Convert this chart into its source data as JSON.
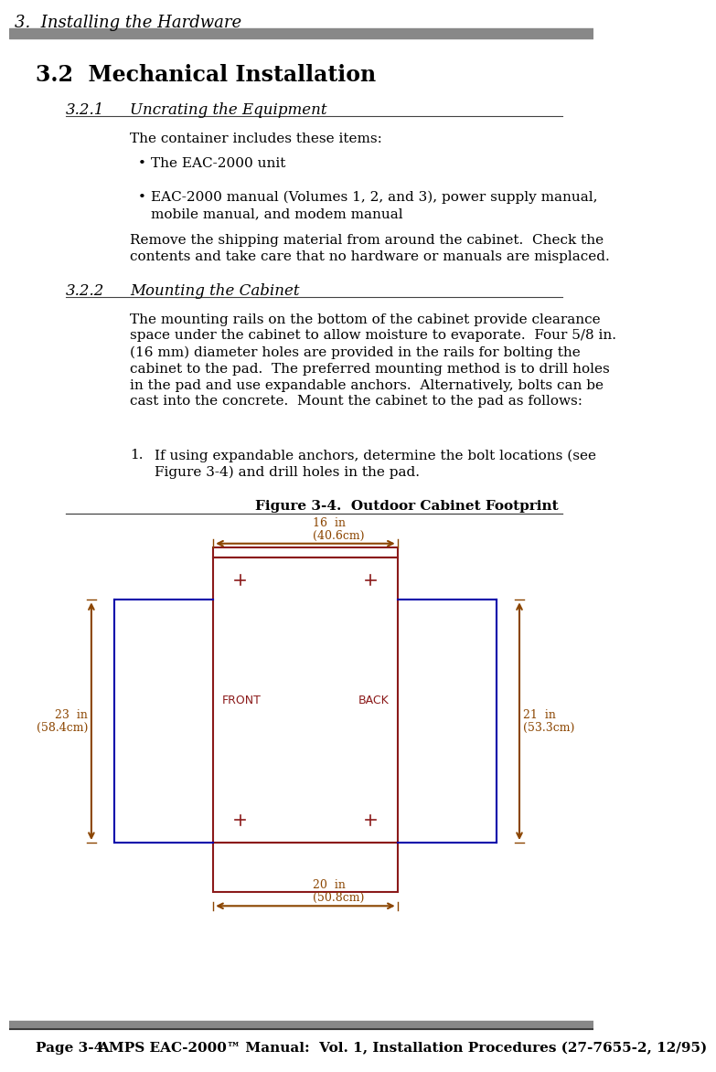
{
  "page_title": "3.  Installing the Hardware",
  "section_title": "3.2  Mechanical Installation",
  "subsection1_num": "3.2.1",
  "subsection1_title": "Uncrating the Equipment",
  "subsection1_text1": "The container includes these items:",
  "subsection1_bullets": [
    "The EAC-2000 unit",
    "EAC-2000 manual (Volumes 1, 2, and 3), power supply manual,\nmobile manual, and modem manual"
  ],
  "subsection1_text2": "Remove the shipping material from around the cabinet.  Check the\ncontents and take care that no hardware or manuals are misplaced.",
  "subsection2_num": "3.2.2",
  "subsection2_title": "Mounting the Cabinet",
  "subsection2_text1": "The mounting rails on the bottom of the cabinet provide clearance\nspace under the cabinet to allow moisture to evaporate.  Four 5/8 in.\n(16 mm) diameter holes are provided in the rails for bolting the\ncabinet to the pad.  The preferred mounting method is to drill holes\nin the pad and use expandable anchors.  Alternatively, bolts can be\ncast into the concrete.  Mount the cabinet to the pad as follows:",
  "step1_num": "1.",
  "step1_text": "If using expandable anchors, determine the bolt locations (see\nFigure 3-4) and drill holes in the pad.",
  "figure_title": "Figure 3-4.  Outdoor Cabinet Footprint",
  "footer_left": "Page 3-4",
  "footer_right": "AMPS EAC-2000™ Manual:  Vol. 1, Installation Procedures (27-7655-2, 12/95)",
  "bg_color": "#ffffff",
  "text_color": "#000000",
  "header_bar_color": "#888888",
  "footer_bar_color": "#555555",
  "dim_color": "#8B4500",
  "blue_color": "#0000AA",
  "red_color": "#8B1A1A",
  "label_color": "#8B1A1A",
  "diagram": {
    "dim_top": "16  in\n(40.6cm)",
    "dim_left": "23  in\n(58.4cm)",
    "dim_right": "21  in\n(53.3cm)",
    "dim_bottom": "20  in\n(50.8cm)",
    "label_front": "FRONT",
    "label_back": "BACK"
  }
}
